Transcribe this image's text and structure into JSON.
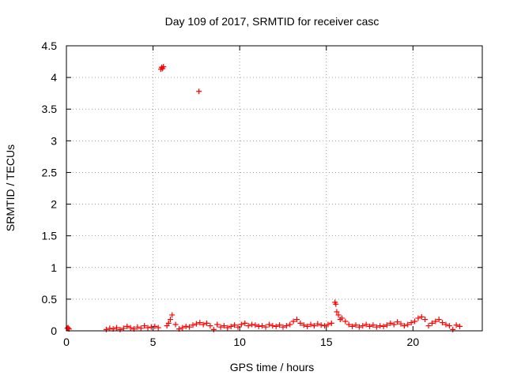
{
  "chart_data": {
    "type": "scatter",
    "title": "Day 109 of 2017, SRMTID for receiver casc",
    "xlabel": "GPS time / hours",
    "ylabel": "SRMTID / TECUs",
    "xlim": [
      0,
      24
    ],
    "ylim": [
      0,
      4.5
    ],
    "x_ticks": [
      0,
      5,
      10,
      15,
      20
    ],
    "x_tick_labels": [
      "0",
      "5",
      "10",
      "15",
      "20"
    ],
    "y_ticks": [
      0,
      0.5,
      1,
      1.5,
      2,
      2.5,
      3,
      3.5,
      4,
      4.5
    ],
    "y_tick_labels": [
      "0",
      "0.5",
      "1",
      "1.5",
      "2",
      "2.5",
      "3",
      "3.5",
      "4",
      "4.5"
    ],
    "grid": true,
    "marker": "+",
    "marker_color": "#ff0000",
    "series": [
      {
        "name": "SRMTID",
        "x": [
          0.05,
          0.1,
          0.15,
          2.3,
          2.5,
          2.7,
          2.9,
          3.1,
          3.3,
          3.5,
          3.7,
          3.9,
          4.1,
          4.3,
          4.5,
          4.7,
          4.9,
          5.1,
          5.3,
          5.45,
          5.5,
          5.55,
          5.6,
          5.8,
          5.9,
          6.0,
          6.1,
          6.3,
          6.5,
          6.7,
          6.9,
          7.1,
          7.3,
          7.5,
          7.65,
          7.7,
          7.9,
          8.1,
          8.3,
          8.5,
          8.7,
          8.9,
          9.1,
          9.3,
          9.5,
          9.7,
          9.9,
          10.1,
          10.3,
          10.5,
          10.7,
          10.9,
          11.1,
          11.3,
          11.5,
          11.7,
          11.9,
          12.1,
          12.3,
          12.5,
          12.7,
          12.9,
          13.1,
          13.3,
          13.5,
          13.7,
          13.9,
          14.1,
          14.3,
          14.5,
          14.7,
          14.9,
          15.1,
          15.3,
          15.5,
          15.55,
          15.6,
          15.7,
          15.8,
          15.9,
          16.1,
          16.3,
          16.5,
          16.7,
          16.9,
          17.1,
          17.3,
          17.5,
          17.7,
          17.9,
          18.1,
          18.3,
          18.5,
          18.7,
          18.9,
          19.1,
          19.3,
          19.5,
          19.7,
          19.9,
          20.1,
          20.3,
          20.5,
          20.7,
          20.9,
          21.1,
          21.3,
          21.5,
          21.7,
          21.9,
          22.1,
          22.3,
          22.5,
          22.7
        ],
        "y": [
          0.04,
          0.05,
          0.03,
          0.02,
          0.04,
          0.03,
          0.05,
          0.02,
          0.04,
          0.07,
          0.05,
          0.03,
          0.06,
          0.04,
          0.08,
          0.05,
          0.06,
          0.07,
          0.05,
          4.13,
          4.16,
          4.14,
          4.17,
          0.08,
          0.12,
          0.18,
          0.25,
          0.1,
          0.03,
          0.05,
          0.07,
          0.06,
          0.09,
          0.11,
          3.78,
          0.13,
          0.1,
          0.12,
          0.08,
          0.02,
          0.1,
          0.06,
          0.08,
          0.05,
          0.07,
          0.09,
          0.06,
          0.1,
          0.12,
          0.08,
          0.1,
          0.09,
          0.07,
          0.08,
          0.06,
          0.1,
          0.08,
          0.07,
          0.09,
          0.06,
          0.08,
          0.1,
          0.15,
          0.18,
          0.12,
          0.09,
          0.07,
          0.1,
          0.08,
          0.11,
          0.09,
          0.08,
          0.1,
          0.12,
          0.45,
          0.42,
          0.3,
          0.25,
          0.18,
          0.2,
          0.15,
          0.1,
          0.07,
          0.09,
          0.06,
          0.08,
          0.1,
          0.07,
          0.09,
          0.06,
          0.08,
          0.07,
          0.09,
          0.12,
          0.1,
          0.14,
          0.11,
          0.08,
          0.1,
          0.13,
          0.15,
          0.2,
          0.22,
          0.18,
          0.08,
          0.12,
          0.15,
          0.18,
          0.13,
          0.1,
          0.08,
          0.02,
          0.09,
          0.07
        ]
      }
    ]
  }
}
